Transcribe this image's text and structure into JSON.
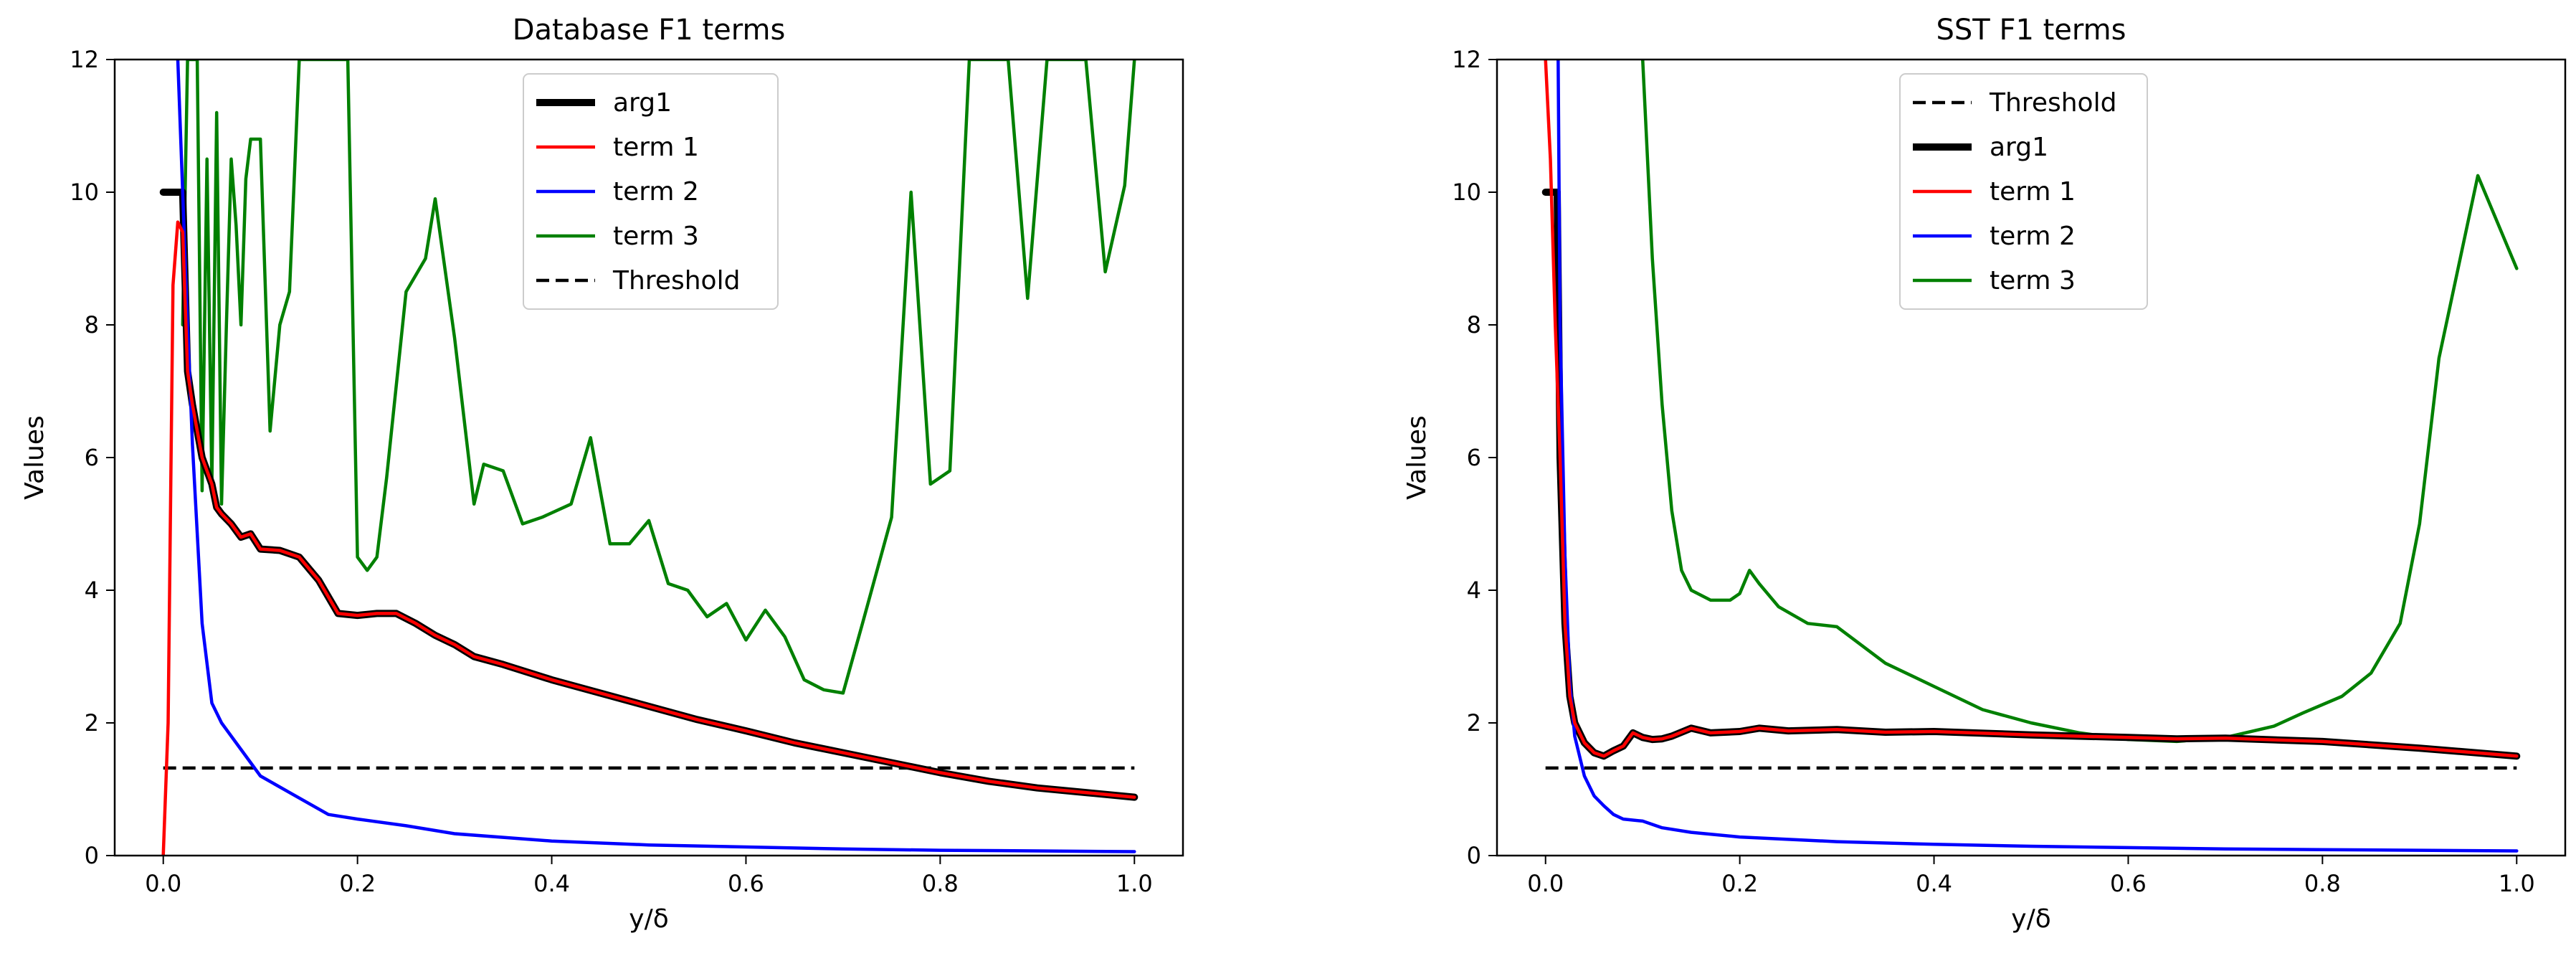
{
  "chart_data": [
    {
      "type": "line",
      "title": "Database F1 terms",
      "xlabel": "y/δ",
      "ylabel": "Values",
      "xlim": [
        -0.05,
        1.05
      ],
      "ylim": [
        0,
        12
      ],
      "xticks": [
        0.0,
        0.2,
        0.4,
        0.6,
        0.8,
        1.0
      ],
      "xtick_labels": [
        "0.0",
        "0.2",
        "0.4",
        "0.6",
        "0.8",
        "1.0"
      ],
      "yticks": [
        0,
        2,
        4,
        6,
        8,
        10,
        12
      ],
      "ytick_labels": [
        "0",
        "2",
        "4",
        "6",
        "8",
        "10",
        "12"
      ],
      "legend_position": "top-center",
      "legend_order": [
        "arg1",
        "term 1",
        "term 2",
        "term 3",
        "Threshold"
      ],
      "series": [
        {
          "name": "arg1",
          "color": "#000000",
          "style": "thick",
          "x": [
            0.0,
            0.02
          ],
          "y": [
            10.0,
            10.0
          ]
        },
        {
          "name": "arg1_curve",
          "color": "#000000",
          "style": "thick",
          "legend": false,
          "x": [
            0.02,
            0.025,
            0.03,
            0.04,
            0.05,
            0.055,
            0.06,
            0.07,
            0.08,
            0.09,
            0.1,
            0.12,
            0.14,
            0.16,
            0.18,
            0.2,
            0.22,
            0.24,
            0.26,
            0.28,
            0.3,
            0.32,
            0.35,
            0.4,
            0.45,
            0.5,
            0.55,
            0.6,
            0.65,
            0.7,
            0.75,
            0.8,
            0.85,
            0.9,
            0.95,
            1.0
          ],
          "y": [
            10.0,
            7.3,
            6.8,
            6.0,
            5.6,
            5.25,
            5.15,
            5.0,
            4.8,
            4.85,
            4.62,
            4.6,
            4.5,
            4.15,
            3.65,
            3.62,
            3.65,
            3.65,
            3.5,
            3.32,
            3.18,
            3.0,
            2.88,
            2.65,
            2.45,
            2.25,
            2.05,
            1.88,
            1.7,
            1.55,
            1.4,
            1.25,
            1.12,
            1.02,
            0.95,
            0.88
          ]
        },
        {
          "name": "term 1",
          "color": "#ff0000",
          "style": "solid",
          "x": [
            0.0,
            0.005,
            0.01,
            0.015,
            0.02,
            0.025,
            0.03,
            0.04,
            0.05,
            0.055,
            0.06,
            0.07,
            0.08,
            0.09,
            0.1,
            0.12,
            0.14,
            0.16,
            0.18,
            0.2,
            0.22,
            0.24,
            0.26,
            0.28,
            0.3,
            0.32,
            0.35,
            0.4,
            0.45,
            0.5,
            0.55,
            0.6,
            0.65,
            0.7,
            0.75,
            0.8,
            0.85,
            0.9,
            0.95,
            1.0
          ],
          "y": [
            0.0,
            2.0,
            8.6,
            9.55,
            9.4,
            7.3,
            6.8,
            6.0,
            5.6,
            5.25,
            5.15,
            5.0,
            4.8,
            4.85,
            4.62,
            4.6,
            4.5,
            4.15,
            3.65,
            3.62,
            3.65,
            3.65,
            3.5,
            3.32,
            3.18,
            3.0,
            2.88,
            2.65,
            2.45,
            2.25,
            2.05,
            1.88,
            1.7,
            1.55,
            1.4,
            1.25,
            1.12,
            1.02,
            0.95,
            0.88
          ]
        },
        {
          "name": "term 2",
          "color": "#0000ff",
          "style": "solid",
          "x": [
            0.015,
            0.02,
            0.025,
            0.03,
            0.04,
            0.05,
            0.06,
            0.08,
            0.1,
            0.13,
            0.17,
            0.2,
            0.25,
            0.3,
            0.4,
            0.5,
            0.6,
            0.7,
            0.8,
            0.9,
            1.0
          ],
          "y": [
            12.0,
            10.0,
            8.0,
            6.2,
            3.5,
            2.3,
            2.0,
            1.6,
            1.2,
            0.95,
            0.62,
            0.55,
            0.45,
            0.33,
            0.22,
            0.16,
            0.13,
            0.1,
            0.08,
            0.07,
            0.06
          ]
        },
        {
          "name": "term 3",
          "color": "#008000",
          "style": "solid",
          "x": [
            0.02,
            0.025,
            0.03,
            0.035,
            0.04,
            0.045,
            0.05,
            0.055,
            0.06,
            0.065,
            0.07,
            0.075,
            0.08,
            0.085,
            0.09,
            0.1,
            0.11,
            0.12,
            0.13,
            0.14,
            0.15,
            0.17,
            0.19,
            0.2,
            0.21,
            0.22,
            0.23,
            0.25,
            0.27,
            0.28,
            0.3,
            0.32,
            0.33,
            0.35,
            0.37,
            0.39,
            0.42,
            0.44,
            0.46,
            0.48,
            0.5,
            0.52,
            0.54,
            0.56,
            0.58,
            0.6,
            0.62,
            0.64,
            0.66,
            0.68,
            0.7,
            0.72,
            0.75,
            0.77,
            0.79,
            0.81,
            0.83,
            0.85,
            0.87,
            0.89,
            0.91,
            0.93,
            0.95,
            0.97,
            0.99,
            1.0
          ],
          "y": [
            8.0,
            12.0,
            12.0,
            12.0,
            5.5,
            10.5,
            5.6,
            11.2,
            5.3,
            8.0,
            10.5,
            9.5,
            8.0,
            10.2,
            10.8,
            10.8,
            6.4,
            8.0,
            8.5,
            12.0,
            12.0,
            12.0,
            12.0,
            4.5,
            4.3,
            4.5,
            5.7,
            8.5,
            9.0,
            9.9,
            7.8,
            5.3,
            5.9,
            5.8,
            5.0,
            5.1,
            5.3,
            6.3,
            4.7,
            4.7,
            5.05,
            4.1,
            4.0,
            3.6,
            3.8,
            3.25,
            3.7,
            3.3,
            2.65,
            2.5,
            2.45,
            3.5,
            5.1,
            10.0,
            5.6,
            5.8,
            12.0,
            12.0,
            12.0,
            8.4,
            12.0,
            12.0,
            12.0,
            8.8,
            10.1,
            12.0
          ],
          "breaks_at_top": true
        },
        {
          "name": "Threshold",
          "color": "#000000",
          "style": "dashed",
          "x": [
            0.0,
            1.0
          ],
          "y": [
            1.32,
            1.32
          ]
        }
      ]
    },
    {
      "type": "line",
      "title": "SST F1 terms",
      "xlabel": "y/δ",
      "ylabel": "Values",
      "xlim": [
        -0.05,
        1.05
      ],
      "ylim": [
        0,
        12
      ],
      "xticks": [
        0.0,
        0.2,
        0.4,
        0.6,
        0.8,
        1.0
      ],
      "xtick_labels": [
        "0.0",
        "0.2",
        "0.4",
        "0.6",
        "0.8",
        "1.0"
      ],
      "yticks": [
        0,
        2,
        4,
        6,
        8,
        10,
        12
      ],
      "ytick_labels": [
        "0",
        "2",
        "4",
        "6",
        "8",
        "10",
        "12"
      ],
      "legend_position": "top-center",
      "legend_order": [
        "Threshold",
        "arg1",
        "term 1",
        "term 2",
        "term 3"
      ],
      "series": [
        {
          "name": "Threshold",
          "color": "#000000",
          "style": "dashed",
          "x": [
            0.0,
            1.0
          ],
          "y": [
            1.32,
            1.32
          ]
        },
        {
          "name": "arg1",
          "color": "#000000",
          "style": "thick",
          "x": [
            0.0,
            0.012
          ],
          "y": [
            10.0,
            10.0
          ]
        },
        {
          "name": "arg1_curve",
          "color": "#000000",
          "style": "thick",
          "legend": false,
          "x": [
            0.012,
            0.015,
            0.02,
            0.025,
            0.03,
            0.04,
            0.05,
            0.06,
            0.07,
            0.08,
            0.09,
            0.1,
            0.11,
            0.12,
            0.13,
            0.15,
            0.17,
            0.2,
            0.22,
            0.25,
            0.3,
            0.35,
            0.4,
            0.5,
            0.6,
            0.65,
            0.7,
            0.8,
            0.9,
            1.0
          ],
          "y": [
            10.0,
            6.0,
            3.5,
            2.4,
            2.0,
            1.7,
            1.55,
            1.5,
            1.58,
            1.65,
            1.85,
            1.78,
            1.75,
            1.76,
            1.8,
            1.92,
            1.85,
            1.87,
            1.92,
            1.88,
            1.9,
            1.86,
            1.87,
            1.82,
            1.78,
            1.76,
            1.77,
            1.72,
            1.62,
            1.5
          ]
        },
        {
          "name": "term 1",
          "color": "#ff0000",
          "style": "solid",
          "x": [
            0.0,
            0.005,
            0.01,
            0.015,
            0.02,
            0.025,
            0.03,
            0.04,
            0.05,
            0.06,
            0.07,
            0.08,
            0.09,
            0.1,
            0.11,
            0.12,
            0.13,
            0.15,
            0.17,
            0.2,
            0.22,
            0.25,
            0.3,
            0.35,
            0.4,
            0.5,
            0.6,
            0.65,
            0.7,
            0.8,
            0.9,
            1.0
          ],
          "y": [
            12.0,
            10.5,
            8.0,
            6.0,
            3.5,
            2.4,
            2.0,
            1.7,
            1.55,
            1.5,
            1.58,
            1.65,
            1.85,
            1.78,
            1.75,
            1.76,
            1.8,
            1.92,
            1.85,
            1.87,
            1.92,
            1.88,
            1.9,
            1.86,
            1.87,
            1.82,
            1.78,
            1.76,
            1.77,
            1.72,
            1.62,
            1.5
          ]
        },
        {
          "name": "term 2",
          "color": "#0000ff",
          "style": "solid",
          "x": [
            0.013,
            0.015,
            0.02,
            0.025,
            0.03,
            0.04,
            0.05,
            0.06,
            0.07,
            0.08,
            0.1,
            0.12,
            0.15,
            0.2,
            0.3,
            0.4,
            0.5,
            0.6,
            0.7,
            0.8,
            0.9,
            1.0
          ],
          "y": [
            12.0,
            8.0,
            4.5,
            2.6,
            1.8,
            1.2,
            0.9,
            0.75,
            0.62,
            0.55,
            0.52,
            0.42,
            0.35,
            0.28,
            0.21,
            0.17,
            0.14,
            0.12,
            0.1,
            0.09,
            0.08,
            0.07
          ]
        },
        {
          "name": "term 3",
          "color": "#008000",
          "style": "solid",
          "x": [
            0.1,
            0.11,
            0.12,
            0.13,
            0.14,
            0.15,
            0.17,
            0.19,
            0.2,
            0.21,
            0.22,
            0.24,
            0.27,
            0.3,
            0.35,
            0.4,
            0.45,
            0.5,
            0.55,
            0.6,
            0.65,
            0.7,
            0.75,
            0.78,
            0.82,
            0.85,
            0.88,
            0.9,
            0.92,
            0.96,
            1.0
          ],
          "y": [
            12.0,
            9.0,
            6.8,
            5.2,
            4.3,
            4.0,
            3.85,
            3.85,
            3.95,
            4.3,
            4.1,
            3.75,
            3.5,
            3.45,
            2.9,
            2.55,
            2.2,
            2.0,
            1.85,
            1.75,
            1.72,
            1.78,
            1.95,
            2.15,
            2.4,
            2.75,
            3.5,
            5.0,
            7.5,
            10.25,
            8.85
          ],
          "breaks_at_top": true
        }
      ]
    }
  ]
}
